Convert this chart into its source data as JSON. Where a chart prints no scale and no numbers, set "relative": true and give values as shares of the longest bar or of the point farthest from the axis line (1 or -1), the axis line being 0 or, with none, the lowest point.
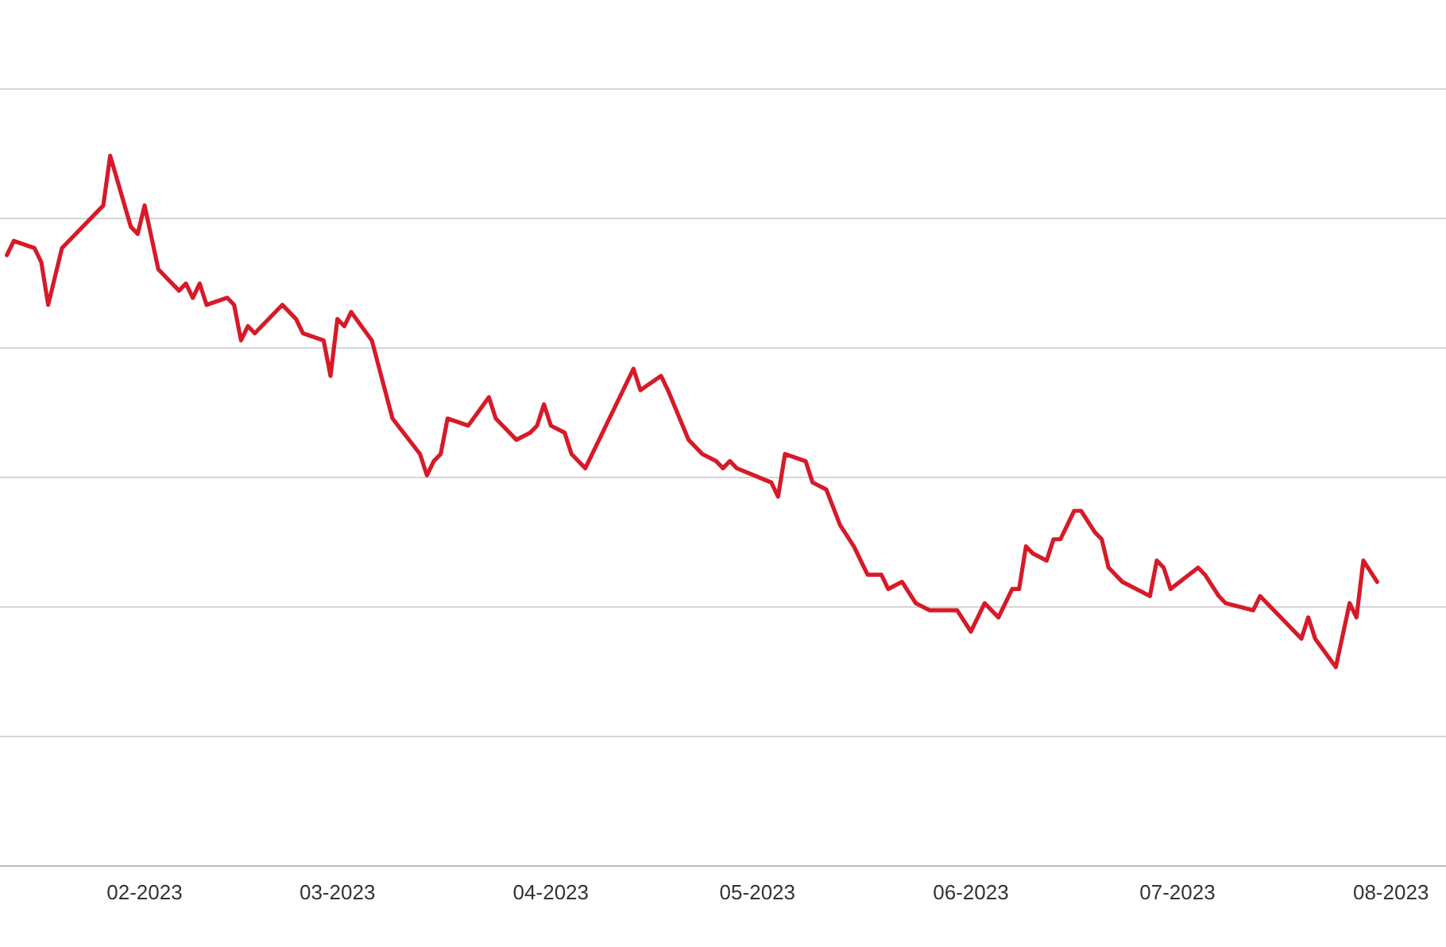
{
  "chart_data": {
    "type": "line",
    "relative": true,
    "grid": "y",
    "marker": "none",
    "line_style": "solid",
    "xlim": [
      "2023-01-11",
      "2023-08-09"
    ],
    "xticks": [
      {
        "value": "2023-02-01",
        "label": "02-2023"
      },
      {
        "value": "2023-03-01",
        "label": "03-2023"
      },
      {
        "value": "2023-04-01",
        "label": "04-2023"
      },
      {
        "value": "2023-05-01",
        "label": "05-2023"
      },
      {
        "value": "2023-06-01",
        "label": "06-2023"
      },
      {
        "value": "2023-07-01",
        "label": "07-2023"
      },
      {
        "value": "2023-08-01",
        "label": "08-2023"
      }
    ],
    "x": [
      "2023-01-12",
      "2023-01-13",
      "2023-01-16",
      "2023-01-17",
      "2023-01-18",
      "2023-01-20",
      "2023-01-26",
      "2023-01-27",
      "2023-01-30",
      "2023-01-31",
      "2023-02-01",
      "2023-02-03",
      "2023-02-06",
      "2023-02-07",
      "2023-02-08",
      "2023-02-09",
      "2023-02-10",
      "2023-02-13",
      "2023-02-14",
      "2023-02-15",
      "2023-02-16",
      "2023-02-17",
      "2023-02-21",
      "2023-02-22",
      "2023-02-23",
      "2023-02-24",
      "2023-02-27",
      "2023-02-28",
      "2023-03-01",
      "2023-03-02",
      "2023-03-03",
      "2023-03-06",
      "2023-03-09",
      "2023-03-13",
      "2023-03-14",
      "2023-03-15",
      "2023-03-16",
      "2023-03-17",
      "2023-03-20",
      "2023-03-23",
      "2023-03-24",
      "2023-03-27",
      "2023-03-29",
      "2023-03-30",
      "2023-03-31",
      "2023-04-01",
      "2023-04-03",
      "2023-04-04",
      "2023-04-06",
      "2023-04-13",
      "2023-04-14",
      "2023-04-17",
      "2023-04-18",
      "2023-04-21",
      "2023-04-23",
      "2023-04-25",
      "2023-04-26",
      "2023-04-27",
      "2023-04-28",
      "2023-05-03",
      "2023-05-04",
      "2023-05-05",
      "2023-05-08",
      "2023-05-09",
      "2023-05-11",
      "2023-05-13",
      "2023-05-15",
      "2023-05-17",
      "2023-05-19",
      "2023-05-20",
      "2023-05-22",
      "2023-05-24",
      "2023-05-26",
      "2023-05-30",
      "2023-06-01",
      "2023-06-03",
      "2023-06-05",
      "2023-06-07",
      "2023-06-08",
      "2023-06-09",
      "2023-06-10",
      "2023-06-12",
      "2023-06-13",
      "2023-06-14",
      "2023-06-16",
      "2023-06-17",
      "2023-06-19",
      "2023-06-20",
      "2023-06-21",
      "2023-06-23",
      "2023-06-27",
      "2023-06-28",
      "2023-06-29",
      "2023-06-30",
      "2023-07-04",
      "2023-07-05",
      "2023-07-07",
      "2023-07-08",
      "2023-07-12",
      "2023-07-13",
      "2023-07-17",
      "2023-07-19",
      "2023-07-20",
      "2023-07-21",
      "2023-07-24",
      "2023-07-26",
      "2023-07-27",
      "2023-07-28",
      "2023-07-30"
    ],
    "series": [
      {
        "color": "#d71a28",
        "values": [
          0.86,
          0.88,
          0.87,
          0.85,
          0.79,
          0.87,
          0.93,
          1.0,
          0.9,
          0.89,
          0.93,
          0.84,
          0.81,
          0.82,
          0.8,
          0.82,
          0.79,
          0.8,
          0.79,
          0.74,
          0.76,
          0.75,
          0.79,
          0.78,
          0.77,
          0.75,
          0.74,
          0.69,
          0.77,
          0.76,
          0.78,
          0.74,
          0.63,
          0.58,
          0.55,
          0.57,
          0.58,
          0.63,
          0.62,
          0.66,
          0.63,
          0.6,
          0.61,
          0.62,
          0.65,
          0.62,
          0.61,
          0.58,
          0.56,
          0.7,
          0.67,
          0.69,
          0.67,
          0.6,
          0.58,
          0.57,
          0.56,
          0.57,
          0.56,
          0.54,
          0.52,
          0.58,
          0.57,
          0.54,
          0.53,
          0.48,
          0.45,
          0.41,
          0.41,
          0.39,
          0.4,
          0.37,
          0.36,
          0.36,
          0.33,
          0.37,
          0.35,
          0.39,
          0.39,
          0.45,
          0.44,
          0.43,
          0.46,
          0.46,
          0.5,
          0.5,
          0.47,
          0.46,
          0.42,
          0.4,
          0.38,
          0.43,
          0.42,
          0.39,
          0.42,
          0.41,
          0.38,
          0.37,
          0.36,
          0.38,
          0.34,
          0.32,
          0.35,
          0.32,
          0.28,
          0.37,
          0.35,
          0.43,
          0.4
        ]
      }
    ]
  }
}
